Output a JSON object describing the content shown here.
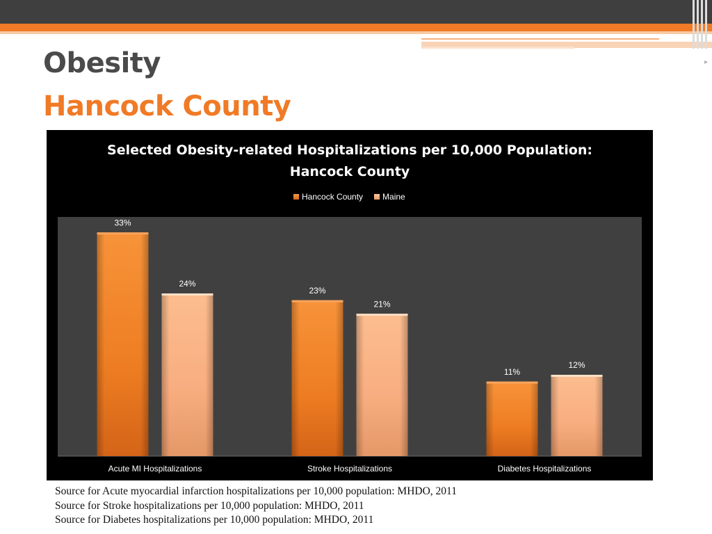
{
  "slide": {
    "title": "Obesity",
    "subtitle": "Hancock County"
  },
  "colors": {
    "accent_orange": "#f07a26",
    "banner_dark": "#3f3f3f",
    "title_gray": "#4a4a4a",
    "chart_background": "#000000",
    "plot_area": "#404040",
    "hancock_bar": "#f28a30",
    "maine_bar": "#fbb589"
  },
  "chart_data": {
    "type": "bar",
    "title_line1": "Selected Obesity-related Hospitalizations per 10,000 Population:",
    "title_line2": "Hancock County",
    "categories": [
      "Acute MI Hospitalizations",
      "Stroke Hospitalizations",
      "Diabetes Hospitalizations"
    ],
    "series": [
      {
        "name": "Hancock County",
        "values": [
          33,
          23,
          11
        ],
        "labels": [
          "33%",
          "23%",
          "11%"
        ]
      },
      {
        "name": "Maine",
        "values": [
          24,
          21,
          12
        ],
        "labels": [
          "24%",
          "21%",
          "12%"
        ]
      }
    ],
    "value_unit": "%",
    "ylim": [
      0,
      35
    ],
    "legend_position": "top",
    "grid": false,
    "y_axis_visible": false
  },
  "footnotes": [
    "Source for Acute myocardial infarction hospitalizations per 10,000 population: MHDO, 2011",
    "Source for Stroke hospitalizations per 10,000 population: MHDO, 2011",
    "Source for Diabetes hospitalizations per 10,000 population: MHDO, 2011"
  ]
}
